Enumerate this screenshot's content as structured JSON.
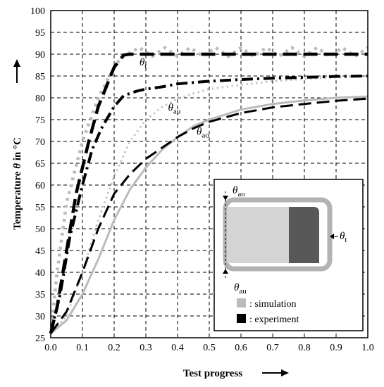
{
  "chart_data": {
    "type": "line",
    "xlabel": "Test progress",
    "ylabel_prefix": "Temperature ",
    "ylabel_symbol": "θ",
    "ylabel_suffix": " in °C",
    "xlim": [
      0.0,
      1.0
    ],
    "ylim": [
      25,
      100
    ],
    "xticks": [
      "0.0",
      "0.1",
      "0.2",
      "0.3",
      "0.4",
      "0.5",
      "0.6",
      "0.7",
      "0.8",
      "0.9",
      "1.0"
    ],
    "yticks": [
      "25",
      "30",
      "35",
      "40",
      "45",
      "50",
      "55",
      "60",
      "65",
      "70",
      "75",
      "80",
      "85",
      "90",
      "95",
      "100"
    ],
    "grid": true,
    "series": [
      {
        "name": "θt",
        "kind": "simulation",
        "color": "#bbbbbb",
        "x": [
          0.0,
          0.02,
          0.05,
          0.1,
          0.15,
          0.2,
          0.22,
          0.24,
          0.28,
          0.32,
          0.36,
          0.4,
          0.44,
          0.48,
          0.52,
          0.56,
          0.6,
          0.64,
          0.68,
          0.72,
          0.76,
          0.8,
          0.84,
          0.88,
          0.92,
          0.96,
          1.0
        ],
        "y": [
          26,
          40,
          56,
          70,
          80,
          87,
          89,
          90,
          91.5,
          89.5,
          91.5,
          89.5,
          91.5,
          89.5,
          91.5,
          89.5,
          91.5,
          89.5,
          91.5,
          89.5,
          91.5,
          89.5,
          91.5,
          89.5,
          91.5,
          89.5,
          91.5
        ]
      },
      {
        "name": "θt",
        "kind": "experiment",
        "color": "#000000",
        "x": [
          0.0,
          0.02,
          0.05,
          0.08,
          0.12,
          0.15,
          0.2,
          0.23,
          0.25,
          0.3,
          0.5,
          0.7,
          1.0
        ],
        "y": [
          26,
          32,
          45,
          58,
          70,
          78,
          87,
          89.8,
          90,
          90,
          90,
          90,
          90
        ]
      },
      {
        "name": "θau",
        "kind": "simulation",
        "color": "#bbbbbb",
        "x": [
          0.0,
          0.05,
          0.1,
          0.15,
          0.2,
          0.25,
          0.3,
          0.35,
          0.4,
          0.45,
          0.5,
          0.6,
          0.7,
          0.8,
          0.9,
          1.0
        ],
        "y": [
          26,
          30,
          40,
          52,
          62,
          70,
          75,
          77.8,
          79.8,
          81,
          82,
          83,
          83.8,
          84.3,
          84.7,
          85
        ]
      },
      {
        "name": "θau",
        "kind": "experiment",
        "color": "#000000",
        "x": [
          0.0,
          0.03,
          0.06,
          0.1,
          0.13,
          0.16,
          0.2,
          0.23,
          0.27,
          0.3,
          0.35,
          0.4,
          0.5,
          0.6,
          0.7,
          0.8,
          0.9,
          1.0
        ],
        "y": [
          26,
          35,
          48,
          60,
          68,
          73,
          78,
          80.5,
          81.5,
          82,
          82.5,
          83.2,
          83.8,
          84.2,
          84.5,
          84.7,
          84.9,
          85
        ]
      },
      {
        "name": "θao",
        "kind": "simulation",
        "color": "#bbbbbb",
        "x": [
          0.0,
          0.05,
          0.1,
          0.15,
          0.2,
          0.25,
          0.3,
          0.35,
          0.4,
          0.45,
          0.5,
          0.6,
          0.7,
          0.8,
          0.9,
          1.0
        ],
        "y": [
          26,
          29,
          35,
          43,
          52,
          59,
          64,
          68,
          71,
          73.5,
          75,
          77.3,
          78.6,
          79.4,
          80,
          80.3
        ]
      },
      {
        "name": "θao",
        "kind": "experiment",
        "color": "#000000",
        "x": [
          0.0,
          0.05,
          0.1,
          0.15,
          0.2,
          0.25,
          0.3,
          0.35,
          0.4,
          0.45,
          0.5,
          0.6,
          0.7,
          0.8,
          0.9,
          1.0
        ],
        "y": [
          26,
          31,
          40,
          50,
          58,
          62.5,
          66,
          68.5,
          71,
          73,
          74.5,
          76.5,
          77.8,
          78.6,
          79.3,
          79.8
        ]
      }
    ],
    "labels": [
      {
        "main": "θ",
        "sub": "t",
        "x": 0.28,
        "y": 87.4
      },
      {
        "main": "θ",
        "sub": "au",
        "x": 0.37,
        "y": 77
      },
      {
        "main": "θ",
        "sub": "ao",
        "x": 0.46,
        "y": 71.5
      }
    ],
    "inset": {
      "labels": [
        {
          "main": "θ",
          "sub": "ao"
        },
        {
          "main": "θ",
          "sub": "t"
        },
        {
          "main": "θ",
          "sub": "au"
        }
      ],
      "legend": [
        {
          "color": "#bbbbbb",
          "text": ": simulation"
        },
        {
          "color": "#000000",
          "text": ": experiment"
        }
      ],
      "colors": {
        "outer": "#b3b3b3",
        "light_fill": "#d4d4d4",
        "dark_fill": "#585858"
      }
    }
  }
}
